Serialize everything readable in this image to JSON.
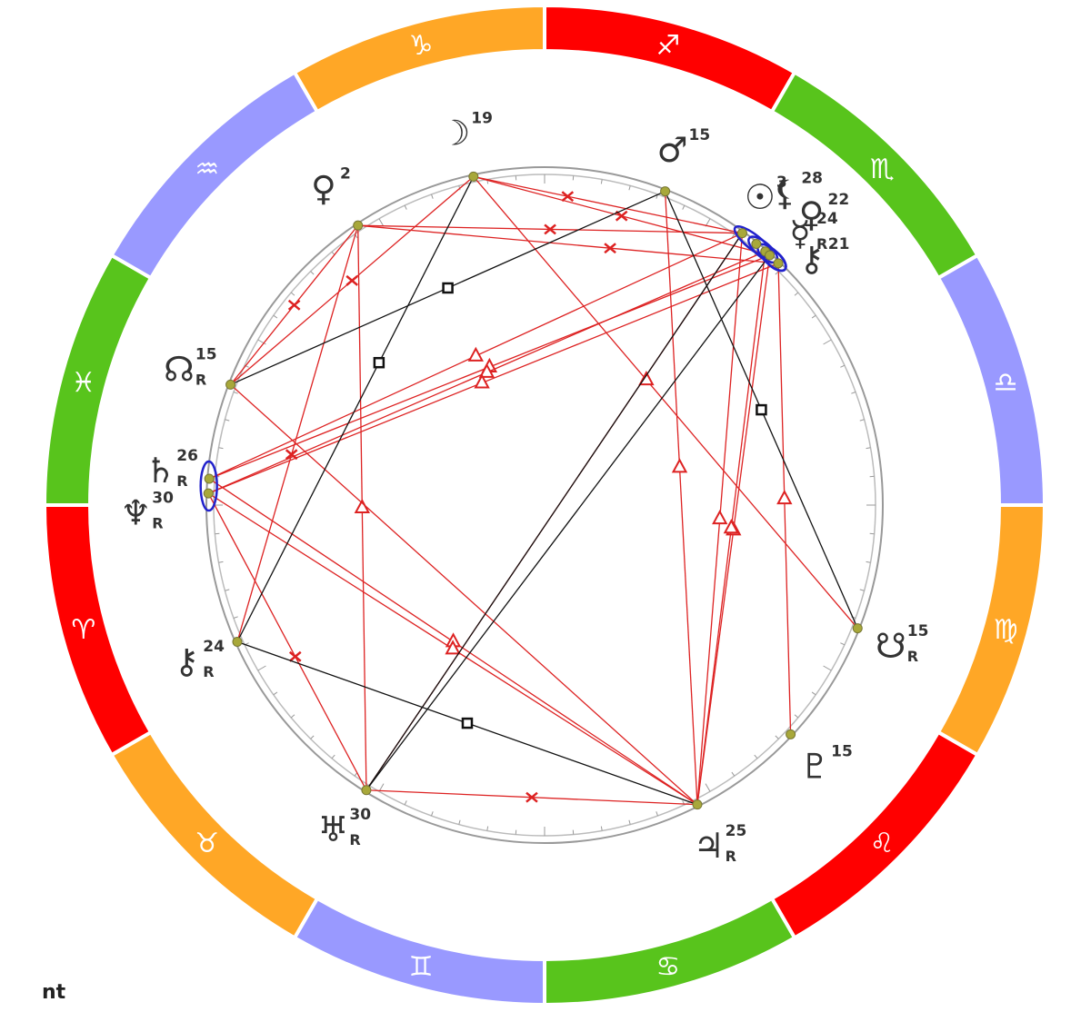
{
  "chart_data": {
    "type": "natal-wheel",
    "signs": [
      {
        "name": "Sagittarius",
        "glyph": "♐",
        "color": "#ff0000",
        "order": 1
      },
      {
        "name": "Scorpio",
        "glyph": "♏",
        "color": "#58c41c",
        "order": 2
      },
      {
        "name": "Libra",
        "glyph": "♎",
        "color": "#9999ff",
        "order": 3
      },
      {
        "name": "Virgo",
        "glyph": "♍",
        "color": "#ffa726",
        "order": 4
      },
      {
        "name": "Leo",
        "glyph": "♌",
        "color": "#ff0000",
        "order": 5
      },
      {
        "name": "Cancer",
        "glyph": "♋",
        "color": "#58c41c",
        "order": 6
      },
      {
        "name": "Gemini",
        "glyph": "♊",
        "color": "#9999ff",
        "order": 7
      },
      {
        "name": "Taurus",
        "glyph": "♉",
        "color": "#ffa726",
        "order": 8
      },
      {
        "name": "Aries",
        "glyph": "♈",
        "color": "#ff0000",
        "order": 9
      },
      {
        "name": "Pisces",
        "glyph": "♓",
        "color": "#58c41c",
        "order": 10
      },
      {
        "name": "Aquarius",
        "glyph": "♒",
        "color": "#9999ff",
        "order": 11
      },
      {
        "name": "Capricorn",
        "glyph": "♑",
        "color": "#ffa726",
        "order": 12
      }
    ],
    "planets": [
      {
        "name": "Moon",
        "glyph": "☽",
        "degree": "19",
        "retrograde": "",
        "angle": 102.2
      },
      {
        "name": "Venus (Capricorn)",
        "glyph": "♀",
        "degree": "2",
        "retrograde": "",
        "angle": 123.7
      },
      {
        "name": "Mars",
        "glyph": "♂",
        "degree": "15",
        "retrograde": "",
        "angle": 69.0
      },
      {
        "name": "Sun",
        "glyph": "☉",
        "degree": "3",
        "retrograde": "",
        "angle": 54.0
      },
      {
        "name": "Lilith",
        "glyph": "⚸",
        "degree": "28",
        "retrograde": "",
        "angle": 51.0
      },
      {
        "name": "Venus (Scorpio)",
        "glyph": "♀",
        "degree": "22",
        "retrograde": "",
        "angle": 49.0
      },
      {
        "name": "Mercury",
        "glyph": "☿",
        "degree": "24",
        "retrograde": "R",
        "angle": 48.0
      },
      {
        "name": "Chiron/Lilith",
        "glyph": "⚷",
        "degree": "21",
        "retrograde": "",
        "angle": 46.0
      },
      {
        "name": "North Node",
        "glyph": "☊",
        "degree": "15",
        "retrograde": "R",
        "angle": 159.0
      },
      {
        "name": "Saturn",
        "glyph": "♄",
        "degree": "26",
        "retrograde": "R",
        "angle": 175.5
      },
      {
        "name": "Neptune",
        "glyph": "♆",
        "degree": "30",
        "retrograde": "R",
        "angle": 178.0
      },
      {
        "name": "Chiron",
        "glyph": "⚷",
        "degree": "24",
        "retrograde": "R",
        "angle": 204.0
      },
      {
        "name": "Uranus",
        "glyph": "♅",
        "degree": "30",
        "retrograde": "R",
        "angle": 238.0
      },
      {
        "name": "Jupiter",
        "glyph": "♃",
        "degree": "25",
        "retrograde": "R",
        "angle": 297.0
      },
      {
        "name": "Pluto",
        "glyph": "♇",
        "degree": "15",
        "retrograde": "",
        "angle": 317.0
      },
      {
        "name": "South Node",
        "glyph": "☋",
        "degree": "15",
        "retrograde": "R",
        "angle": 338.5
      }
    ],
    "aspect_colors": {
      "harmonious": "#dd2222",
      "tense": "#111111",
      "conjunction": "#2222cc"
    }
  },
  "footer": {
    "text": "nt"
  }
}
